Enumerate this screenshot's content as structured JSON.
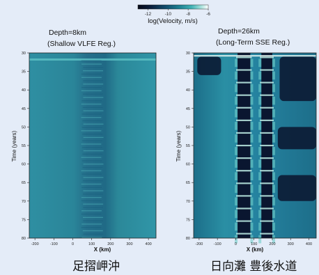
{
  "colorbar": {
    "label": "log(Velocity, m/s)",
    "ticks": [
      "-12",
      "-10",
      "-8",
      "-6"
    ],
    "range": [
      -13,
      -6
    ],
    "colors": [
      "#050816",
      "#0b1e3c",
      "#114f6e",
      "#1b7e90",
      "#3fb1b4",
      "#a7e2dc",
      "#ffffff"
    ]
  },
  "chart_data": [
    {
      "type": "heatmap",
      "title": "Depth=8km",
      "subtitle": "(Shallow VLFE Reg.)",
      "caption": "足摺岬沖",
      "xlabel": "X (km)",
      "ylabel": "Time (years)",
      "xlim": [
        -230,
        440
      ],
      "ylim": [
        30,
        80
      ],
      "xticks": [
        "-200",
        "-100",
        "0",
        "100",
        "200",
        "300",
        "400"
      ],
      "yticks": [
        "30",
        "35",
        "40",
        "45",
        "50",
        "55",
        "60",
        "65",
        "70",
        "75",
        "80"
      ],
      "active_band_x": [
        40,
        220
      ],
      "mean_log_velocity_outside": -9.2,
      "mean_log_velocity_band": -8.3
    },
    {
      "type": "heatmap",
      "title": "Depth=26km",
      "subtitle": "(Long-Term SSE Reg.)",
      "caption": "日向灘 豊後水道",
      "xlabel": "X (km)",
      "ylabel": "Time (years)",
      "xlim": [
        -230,
        440
      ],
      "ylim": [
        30,
        80
      ],
      "xticks": [
        "-200",
        "-100",
        "0",
        "100",
        "200",
        "300",
        "400"
      ],
      "yticks": [
        "30",
        "35",
        "40",
        "45",
        "50",
        "55",
        "60",
        "65",
        "70",
        "75",
        "80"
      ],
      "slow_column_x": [
        [
          10,
          80
        ],
        [
          140,
          200
        ]
      ],
      "slow_patches": [
        {
          "x": [
            240,
            440
          ],
          "years": [
            31,
            43
          ]
        },
        {
          "x": [
            230,
            440
          ],
          "years": [
            50,
            56
          ]
        },
        {
          "x": [
            230,
            440
          ],
          "years": [
            63,
            70
          ]
        },
        {
          "x": [
            -210,
            -80
          ],
          "years": [
            31,
            36
          ]
        }
      ]
    }
  ]
}
